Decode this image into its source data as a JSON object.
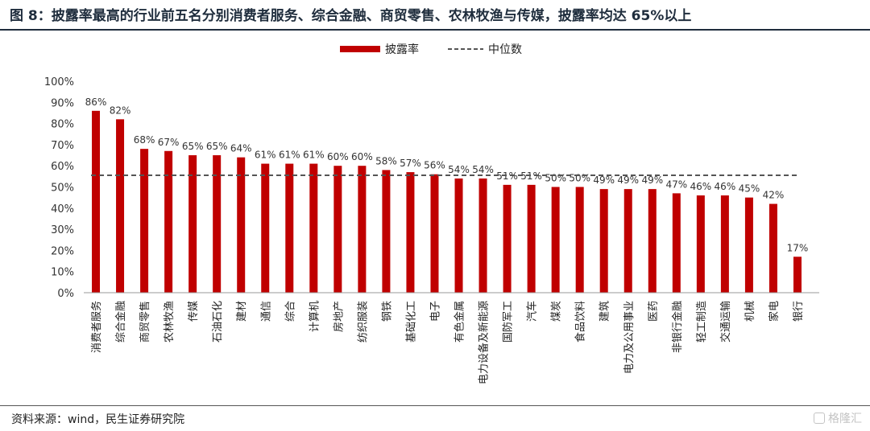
{
  "header": {
    "title": "图 8：披露率最高的行业前五名分别消费者服务、综合金融、商贸零售、农林牧渔与传媒，披露率均达 65%以上"
  },
  "footer": {
    "source": "资料来源：wind，民生证券研究院",
    "watermark": "格隆汇"
  },
  "colors": {
    "bar": "#c00000",
    "median_line": "#555555",
    "axis": "#999999"
  },
  "chart_data": {
    "type": "bar",
    "categories": [
      "消费者服务",
      "综合金融",
      "商贸零售",
      "农林牧渔",
      "传媒",
      "石油石化",
      "建材",
      "通信",
      "综合",
      "计算机",
      "房地产",
      "纺织服装",
      "钢铁",
      "基础化工",
      "电子",
      "有色金属",
      "电力设备及新能源",
      "国防军工",
      "汽车",
      "煤炭",
      "食品饮料",
      "建筑",
      "电力及公用事业",
      "医药",
      "非银行金融",
      "轻工制造",
      "交通运输",
      "机械",
      "家电",
      "银行"
    ],
    "series": [
      {
        "name": "披露率",
        "type": "bar",
        "values": [
          86,
          82,
          68,
          67,
          65,
          65,
          64,
          61,
          61,
          61,
          60,
          60,
          58,
          57,
          56,
          54,
          54,
          51,
          51,
          50,
          50,
          49,
          49,
          49,
          47,
          46,
          46,
          45,
          42,
          17
        ],
        "value_labels": [
          "86%",
          "82%",
          "68%",
          "67%",
          "65%",
          "65%",
          "64%",
          "61%",
          "61%",
          "61%",
          "60%",
          "60%",
          "58%",
          "57%",
          "56%",
          "54%",
          "54%",
          "51%",
          "51%",
          "50%",
          "50%",
          "49%",
          "49%",
          "49%",
          "47%",
          "46%",
          "46%",
          "45%",
          "42%",
          "17%"
        ]
      },
      {
        "name": "中位数",
        "type": "line",
        "style": "dashed",
        "value": 55.5
      }
    ],
    "ylim": [
      0,
      100
    ],
    "y_ticks": [
      "0%",
      "10%",
      "20%",
      "30%",
      "40%",
      "50%",
      "60%",
      "70%",
      "80%",
      "90%",
      "100%"
    ],
    "legend_position": "top-center",
    "grid": false
  }
}
